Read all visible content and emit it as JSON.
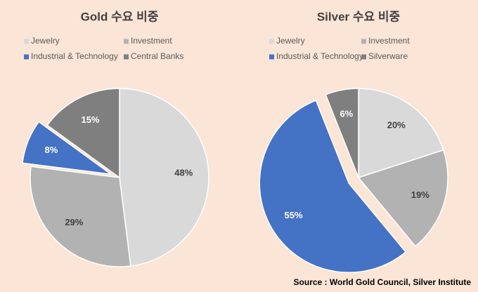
{
  "chart_data": [
    {
      "type": "pie",
      "title": "Gold 수요 비중",
      "categories": [
        "Jewelry",
        "Investment",
        "Industrial & Technology",
        "Central Banks"
      ],
      "values": [
        48,
        29,
        8,
        15
      ],
      "value_labels": [
        "48%",
        "29%",
        "8%",
        "15%"
      ],
      "colors": [
        "#d9d9d9",
        "#b2b2b2",
        "#4472c4",
        "#7f7f7f"
      ],
      "exploded_index": 2
    },
    {
      "type": "pie",
      "title": "Silver 수요 비중",
      "categories": [
        "Jewelry",
        "Investment",
        "Industrial & Technology",
        "Silverware"
      ],
      "values": [
        20,
        19,
        55,
        6
      ],
      "value_labels": [
        "20%",
        "19%",
        "55%",
        "6%"
      ],
      "colors": [
        "#d9d9d9",
        "#b2b2b2",
        "#4472c4",
        "#7f7f7f"
      ],
      "exploded_index": 2
    }
  ],
  "source": "Source : World Gold Council, Silver Institute"
}
